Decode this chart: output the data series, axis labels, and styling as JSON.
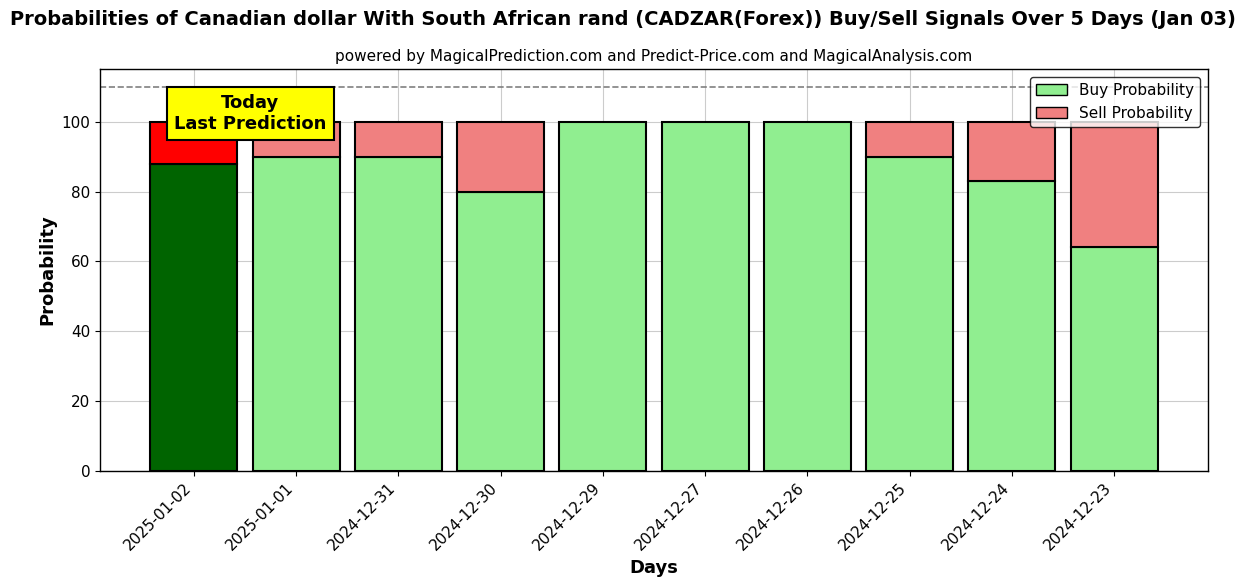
{
  "title": "Probabilities of Canadian dollar With South African rand (CADZAR(Forex)) Buy/Sell Signals Over 5 Days (Jan 03)",
  "subtitle": "powered by MagicalPrediction.com and Predict-Price.com and MagicalAnalysis.com",
  "xlabel": "Days",
  "ylabel": "Probability",
  "categories": [
    "2025-01-02",
    "2025-01-01",
    "2024-12-31",
    "2024-12-30",
    "2024-12-29",
    "2024-12-27",
    "2024-12-26",
    "2024-12-25",
    "2024-12-24",
    "2024-12-23"
  ],
  "buy_values": [
    88,
    90,
    90,
    80,
    100,
    100,
    100,
    90,
    83,
    64
  ],
  "sell_values": [
    12,
    10,
    10,
    20,
    0,
    0,
    0,
    10,
    17,
    36
  ],
  "today_index": 0,
  "buy_color_today": "#006400",
  "sell_color_today": "#FF0000",
  "buy_color_normal": "#90EE90",
  "sell_color_normal": "#F08080",
  "today_label_bg": "#FFFF00",
  "today_label_text": "Today\nLast Prediction",
  "bar_edge_color": "#000000",
  "bar_edge_width": 1.5,
  "ylim": [
    0,
    115
  ],
  "dashed_line_y": 110,
  "legend_buy": "Buy Probability",
  "legend_sell": "Sell Probability",
  "title_fontsize": 14,
  "subtitle_fontsize": 11,
  "axis_label_fontsize": 13,
  "tick_fontsize": 11,
  "background_color": "#ffffff",
  "grid_color": "#cccccc",
  "bar_width": 0.85
}
